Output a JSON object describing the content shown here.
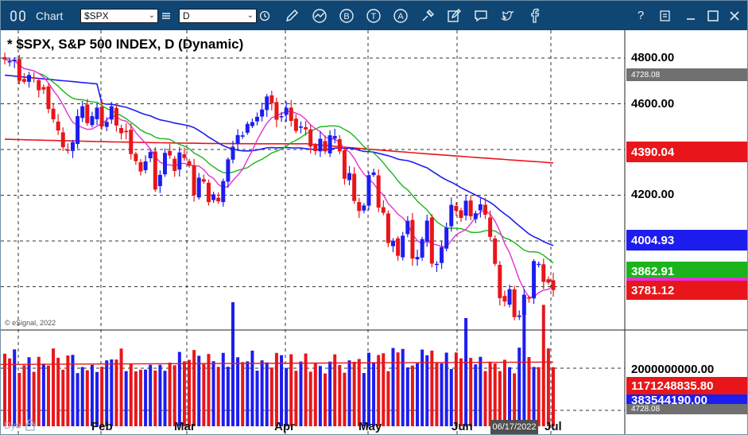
{
  "window": {
    "title": "Chart",
    "symbol": "$SPX",
    "interval": "D"
  },
  "toolbar_icons": [
    "pencil-icon",
    "line-chart-icon",
    "b-circle-icon",
    "t-circle-icon",
    "a-circle-icon",
    "tools-icon",
    "edit-icon",
    "comment-icon",
    "twitter-icon",
    "facebook-icon"
  ],
  "window_controls": [
    "help-icon",
    "minimize-icon",
    "restore-icon",
    "close-icon"
  ],
  "chart": {
    "title": "* $SPX, S&P 500 INDEX, D (Dynamic)",
    "watermark": "© eSignal, 2022",
    "dyn_label": "Dyn",
    "price_ticks": [
      "4800.00",
      "4600.00",
      "4200.00"
    ],
    "price_boxes": [
      {
        "text": "4728.08",
        "color": "#707070"
      },
      {
        "text": "4390.04",
        "color": "#e8161a"
      },
      {
        "text": "4004.93",
        "color": "#1d1df0"
      },
      {
        "text": "3862.91",
        "color": "#1cb41c"
      },
      {
        "text": "3781.12",
        "color": "#e8161a"
      }
    ],
    "volume_tick": "2000000000.00",
    "volume_boxes": [
      {
        "text": "1171248835.80",
        "color": "#e8161a"
      },
      {
        "text": "383544190.00",
        "color": "#1d1df0"
      },
      {
        "text": "4728.08",
        "color": "#707070"
      }
    ],
    "x_labels": [
      "Feb",
      "Mar",
      "Apr",
      "May",
      "Jun",
      "Jul"
    ],
    "cursor_date": "06/17/2022",
    "colors": {
      "up": "#1d1df0",
      "down": "#e8161a",
      "ma_long": "#e8161a",
      "ma_mid": "#1d1df0",
      "ma_fast": "#1cb41c",
      "ma_fastest": "#e232d5"
    }
  },
  "chart_data": {
    "type": "candlestick",
    "price_range": [
      3640,
      4860
    ],
    "closes": [
      4794,
      4786,
      4793,
      4700,
      4696,
      4726,
      4713,
      4659,
      4662,
      4577,
      4532,
      4483,
      4410,
      4398,
      4432,
      4546,
      4589,
      4515,
      4546,
      4583,
      4501,
      4521,
      4589,
      4505,
      4471,
      4476,
      4380,
      4349,
      4304,
      4348,
      4389,
      4225,
      4289,
      4385,
      4374,
      4306,
      4387,
      4363,
      4329,
      4201,
      4277,
      4259,
      4170,
      4204,
      4173,
      4262,
      4357,
      4412,
      4463,
      4462,
      4512,
      4520,
      4543,
      4575,
      4632,
      4602,
      4530,
      4546,
      4582,
      4525,
      4481,
      4501,
      4488,
      4413,
      4393,
      4447,
      4392,
      4462,
      4459,
      4392,
      4272,
      4297,
      4175,
      4131,
      4155,
      4288,
      4300,
      4146,
      4123,
      3991,
      4001,
      3935,
      4023,
      4088,
      3923,
      3930,
      4008,
      4089,
      3901,
      3900,
      3973,
      4058,
      4158,
      4132,
      4101,
      4176,
      4108,
      4121,
      4160,
      4115,
      4018,
      3900,
      3750,
      3735,
      3789,
      3667,
      3674,
      3765,
      3750,
      3912,
      3900,
      3821,
      3818,
      3785
    ],
    "ma_fastest_label": "3781.12",
    "ma_fast_label": "3862.91",
    "ma_mid_label": "4004.93",
    "ma_long_label": "4390.04",
    "volume_range": [
      0,
      2600000000
    ],
    "volume_spikes": [
      {
        "index": 47,
        "value": 2350000000
      },
      {
        "index": 95,
        "value": 2050000000
      },
      {
        "index": 107,
        "value": 2350000000
      },
      {
        "index": 111,
        "value": 2300000000
      }
    ]
  }
}
